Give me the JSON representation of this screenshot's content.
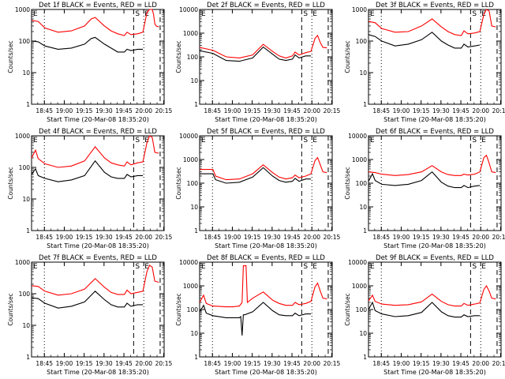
{
  "figure": {
    "title_template": "Det {det} BLACK = Events, RED = LLD",
    "xlabel": "Start Time (20-Mar-08 18:35:20)",
    "ylabel": "Counts/sec",
    "x_ticks": [
      "18:45",
      "19:00",
      "19:15",
      "19:30",
      "19:45",
      "20:00",
      "20:15"
    ],
    "x_range_minutes": [
      0,
      100
    ],
    "x_tick_positions_minutes": [
      9.67,
      24.67,
      39.67,
      54.67,
      69.67,
      84.67,
      99.67
    ],
    "annotations": {
      "s": "S",
      "e": "E"
    },
    "colors": {
      "events": "#000000",
      "lld": "#ff0000"
    }
  },
  "chart_data": [
    {
      "type": "line",
      "title": "Det 1f BLACK = Events, RED = LLD",
      "ylim": [
        1,
        1000
      ],
      "yscale": "log",
      "y_ticks": [
        "1",
        "10",
        "100",
        "1000"
      ],
      "vlines_dotted": [
        9.67,
        84.67
      ],
      "vlines_dashed": [
        77,
        97
      ],
      "series": [
        {
          "name": "Events",
          "color": "#000000",
          "x": [
            0,
            5,
            10,
            20,
            30,
            40,
            45,
            48,
            55,
            60,
            65,
            70,
            72,
            75,
            80,
            84
          ],
          "y": [
            100,
            95,
            70,
            55,
            60,
            80,
            120,
            130,
            80,
            60,
            45,
            45,
            55,
            50,
            55,
            55
          ]
        },
        {
          "name": "LLD",
          "color": "#ff0000",
          "x": [
            0,
            5,
            10,
            20,
            30,
            40,
            45,
            48,
            55,
            60,
            65,
            70,
            72,
            75,
            80,
            84,
            87,
            89,
            90,
            91,
            92,
            93,
            94,
            96
          ],
          "y": [
            450,
            420,
            260,
            190,
            210,
            300,
            500,
            560,
            300,
            210,
            170,
            150,
            190,
            160,
            170,
            190,
            800,
            1000,
            1000,
            1000,
            700,
            350,
            300,
            280
          ]
        }
      ]
    },
    {
      "type": "line",
      "title": "Det 2f BLACK = Events, RED = LLD",
      "ylim": [
        1,
        10000
      ],
      "yscale": "log",
      "y_ticks": [
        "1",
        "10",
        "100",
        "1000",
        "10000"
      ],
      "vlines_dotted": [
        9.67,
        84.67
      ],
      "vlines_dashed": [
        77,
        97
      ],
      "series": [
        {
          "name": "Events",
          "color": "#000000",
          "x": [
            0,
            10,
            20,
            30,
            40,
            48,
            55,
            60,
            65,
            70,
            72,
            75,
            80,
            84
          ],
          "y": [
            180,
            140,
            70,
            65,
            90,
            260,
            130,
            80,
            70,
            80,
            120,
            90,
            110,
            110
          ]
        },
        {
          "name": "LLD",
          "color": "#ff0000",
          "x": [
            0,
            10,
            20,
            30,
            40,
            48,
            55,
            60,
            65,
            70,
            72,
            75,
            80,
            84,
            87,
            89,
            91,
            93,
            96
          ],
          "y": [
            250,
            190,
            100,
            90,
            120,
            340,
            170,
            110,
            90,
            110,
            160,
            120,
            150,
            170,
            600,
            800,
            400,
            250,
            240
          ]
        }
      ]
    },
    {
      "type": "line",
      "title": "Det 3f BLACK = Events, RED = LLD",
      "ylim": [
        1,
        1000
      ],
      "yscale": "log",
      "y_ticks": [
        "1",
        "10",
        "100",
        "1000"
      ],
      "vlines_dotted": [
        9.67,
        84.67
      ],
      "vlines_dashed": [
        77,
        97
      ],
      "series": [
        {
          "name": "Events",
          "color": "#000000",
          "x": [
            0,
            5,
            10,
            20,
            30,
            40,
            48,
            55,
            60,
            65,
            70,
            72,
            75,
            80,
            84
          ],
          "y": [
            160,
            140,
            100,
            70,
            80,
            110,
            190,
            100,
            75,
            60,
            60,
            80,
            65,
            70,
            75
          ]
        },
        {
          "name": "LLD",
          "color": "#ff0000",
          "x": [
            0,
            5,
            10,
            20,
            30,
            40,
            48,
            55,
            60,
            65,
            70,
            72,
            75,
            80,
            84,
            87,
            89,
            91,
            93,
            96
          ],
          "y": [
            420,
            380,
            250,
            190,
            200,
            300,
            500,
            280,
            200,
            160,
            150,
            210,
            170,
            180,
            200,
            700,
            1000,
            900,
            300,
            280
          ]
        }
      ]
    },
    {
      "type": "line",
      "title": "Det 4f BLACK = Events, RED = LLD",
      "ylim": [
        1,
        1000
      ],
      "yscale": "log",
      "y_ticks": [
        "1",
        "10",
        "100",
        "1000"
      ],
      "vlines_dotted": [
        9.67,
        84.67
      ],
      "vlines_dashed": [
        77,
        97
      ],
      "series": [
        {
          "name": "Events",
          "color": "#000000",
          "x": [
            0,
            3,
            5,
            10,
            20,
            30,
            40,
            48,
            55,
            60,
            65,
            70,
            72,
            75,
            80,
            84
          ],
          "y": [
            60,
            90,
            55,
            45,
            35,
            40,
            55,
            160,
            70,
            50,
            45,
            45,
            60,
            50,
            55,
            55
          ]
        },
        {
          "name": "LLD",
          "color": "#ff0000",
          "x": [
            0,
            3,
            5,
            10,
            20,
            30,
            40,
            48,
            55,
            60,
            65,
            70,
            72,
            75,
            80,
            84,
            87,
            89,
            91,
            93,
            96
          ],
          "y": [
            200,
            350,
            190,
            130,
            100,
            110,
            160,
            450,
            200,
            140,
            120,
            110,
            150,
            120,
            140,
            150,
            600,
            1000,
            900,
            300,
            280
          ]
        }
      ]
    },
    {
      "type": "line",
      "title": "Det 5f BLACK = Events, RED = LLD",
      "ylim": [
        1,
        10000
      ],
      "yscale": "log",
      "y_ticks": [
        "1",
        "10",
        "100",
        "1000",
        "10000"
      ],
      "vlines_dotted": [
        9.67,
        84.67
      ],
      "vlines_dashed": [
        77,
        97
      ],
      "series": [
        {
          "name": "Events",
          "color": "#000000",
          "x": [
            0,
            10,
            12,
            20,
            30,
            40,
            48,
            55,
            60,
            65,
            70,
            72,
            75,
            80,
            84
          ],
          "y": [
            250,
            250,
            140,
            100,
            110,
            180,
            450,
            200,
            130,
            110,
            120,
            160,
            120,
            150,
            150
          ]
        },
        {
          "name": "LLD",
          "color": "#ff0000",
          "x": [
            0,
            10,
            12,
            20,
            30,
            40,
            48,
            55,
            60,
            65,
            70,
            72,
            75,
            80,
            84,
            87,
            89,
            91,
            93,
            96
          ],
          "y": [
            380,
            380,
            200,
            140,
            150,
            250,
            600,
            280,
            180,
            150,
            170,
            220,
            170,
            200,
            250,
            900,
            1200,
            600,
            300,
            280
          ]
        }
      ]
    },
    {
      "type": "line",
      "title": "Det 6f BLACK = Events, RED = LLD",
      "ylim": [
        1,
        10000
      ],
      "yscale": "log",
      "y_ticks": [
        "1",
        "10",
        "100",
        "1000",
        "10000"
      ],
      "vlines_dotted": [
        9.67,
        84.67
      ],
      "vlines_dashed": [
        77,
        97
      ],
      "series": [
        {
          "name": "Events",
          "color": "#000000",
          "x": [
            0,
            3,
            5,
            10,
            20,
            30,
            40,
            48,
            55,
            60,
            65,
            70,
            72,
            75,
            80,
            84
          ],
          "y": [
            120,
            250,
            130,
            90,
            80,
            90,
            130,
            300,
            110,
            75,
            65,
            65,
            80,
            65,
            75,
            80
          ]
        },
        {
          "name": "LLD",
          "color": "#ff0000",
          "x": [
            0,
            5,
            10,
            20,
            30,
            40,
            48,
            55,
            60,
            65,
            70,
            72,
            75,
            80,
            84,
            87,
            89,
            91,
            93,
            96
          ],
          "y": [
            300,
            280,
            240,
            210,
            230,
            300,
            550,
            300,
            230,
            210,
            210,
            240,
            220,
            240,
            300,
            1200,
            1500,
            700,
            300,
            280
          ]
        }
      ]
    },
    {
      "type": "line",
      "title": "Det 7f BLACK = Events, RED = LLD",
      "ylim": [
        1,
        1000
      ],
      "yscale": "log",
      "y_ticks": [
        "1",
        "10",
        "100",
        "1000"
      ],
      "vlines_dotted": [
        9.67,
        84.67
      ],
      "vlines_dashed": [
        77,
        97
      ],
      "series": [
        {
          "name": "Events",
          "color": "#000000",
          "x": [
            0,
            5,
            10,
            20,
            30,
            40,
            48,
            55,
            60,
            65,
            70,
            72,
            75,
            80,
            84
          ],
          "y": [
            75,
            70,
            50,
            35,
            40,
            55,
            120,
            65,
            45,
            38,
            38,
            50,
            40,
            45,
            45
          ]
        },
        {
          "name": "LLD",
          "color": "#ff0000",
          "x": [
            0,
            5,
            10,
            20,
            30,
            40,
            48,
            55,
            60,
            65,
            70,
            72,
            75,
            80,
            84,
            87,
            89,
            91,
            93,
            96
          ],
          "y": [
            180,
            170,
            120,
            90,
            100,
            140,
            300,
            160,
            110,
            95,
            95,
            130,
            100,
            110,
            120,
            500,
            800,
            700,
            250,
            230
          ]
        }
      ]
    },
    {
      "type": "line",
      "title": "Det 8f BLACK = Events, RED = LLD",
      "ylim": [
        1,
        10000
      ],
      "yscale": "log",
      "y_ticks": [
        "1",
        "10",
        "100",
        "1000",
        "10000"
      ],
      "vlines_dotted": [
        9.67,
        84.67
      ],
      "vlines_dashed": [
        77,
        97
      ],
      "series": [
        {
          "name": "Events",
          "color": "#000000",
          "x": [
            0,
            3,
            5,
            10,
            20,
            25,
            30,
            31,
            32,
            33,
            34,
            40,
            48,
            55,
            60,
            65,
            70,
            72,
            75,
            80,
            84
          ],
          "y": [
            80,
            150,
            70,
            55,
            45,
            45,
            45,
            50,
            8,
            60,
            60,
            80,
            200,
            90,
            60,
            55,
            55,
            70,
            55,
            65,
            65
          ]
        },
        {
          "name": "LLD",
          "color": "#ff0000",
          "x": [
            0,
            3,
            5,
            10,
            20,
            25,
            30,
            32,
            33,
            34,
            35,
            36,
            40,
            48,
            55,
            60,
            65,
            70,
            72,
            75,
            80,
            84,
            87,
            89,
            91,
            93,
            96
          ],
          "y": [
            200,
            400,
            180,
            140,
            130,
            130,
            140,
            200,
            7000,
            7000,
            7000,
            200,
            300,
            550,
            250,
            180,
            150,
            150,
            200,
            160,
            180,
            220,
            900,
            1300,
            600,
            300,
            280
          ]
        }
      ]
    },
    {
      "type": "line",
      "title": "Det 9f BLACK = Events, RED = LLD",
      "ylim": [
        1,
        10000
      ],
      "yscale": "log",
      "y_ticks": [
        "1",
        "10",
        "100",
        "1000",
        "10000"
      ],
      "vlines_dotted": [
        9.67,
        84.67
      ],
      "vlines_dashed": [
        77,
        97
      ],
      "series": [
        {
          "name": "Events",
          "color": "#000000",
          "x": [
            0,
            3,
            5,
            10,
            20,
            30,
            40,
            48,
            55,
            60,
            65,
            70,
            72,
            75,
            80,
            84
          ],
          "y": [
            100,
            200,
            90,
            65,
            50,
            55,
            75,
            200,
            80,
            55,
            48,
            48,
            60,
            50,
            55,
            55
          ]
        },
        {
          "name": "LLD",
          "color": "#ff0000",
          "x": [
            0,
            3,
            5,
            10,
            20,
            30,
            40,
            48,
            55,
            60,
            65,
            70,
            72,
            75,
            80,
            84,
            87,
            89,
            91,
            93,
            96
          ],
          "y": [
            230,
            400,
            220,
            170,
            150,
            160,
            210,
            450,
            220,
            160,
            140,
            140,
            180,
            150,
            170,
            190,
            700,
            1000,
            600,
            300,
            280
          ]
        }
      ]
    }
  ]
}
